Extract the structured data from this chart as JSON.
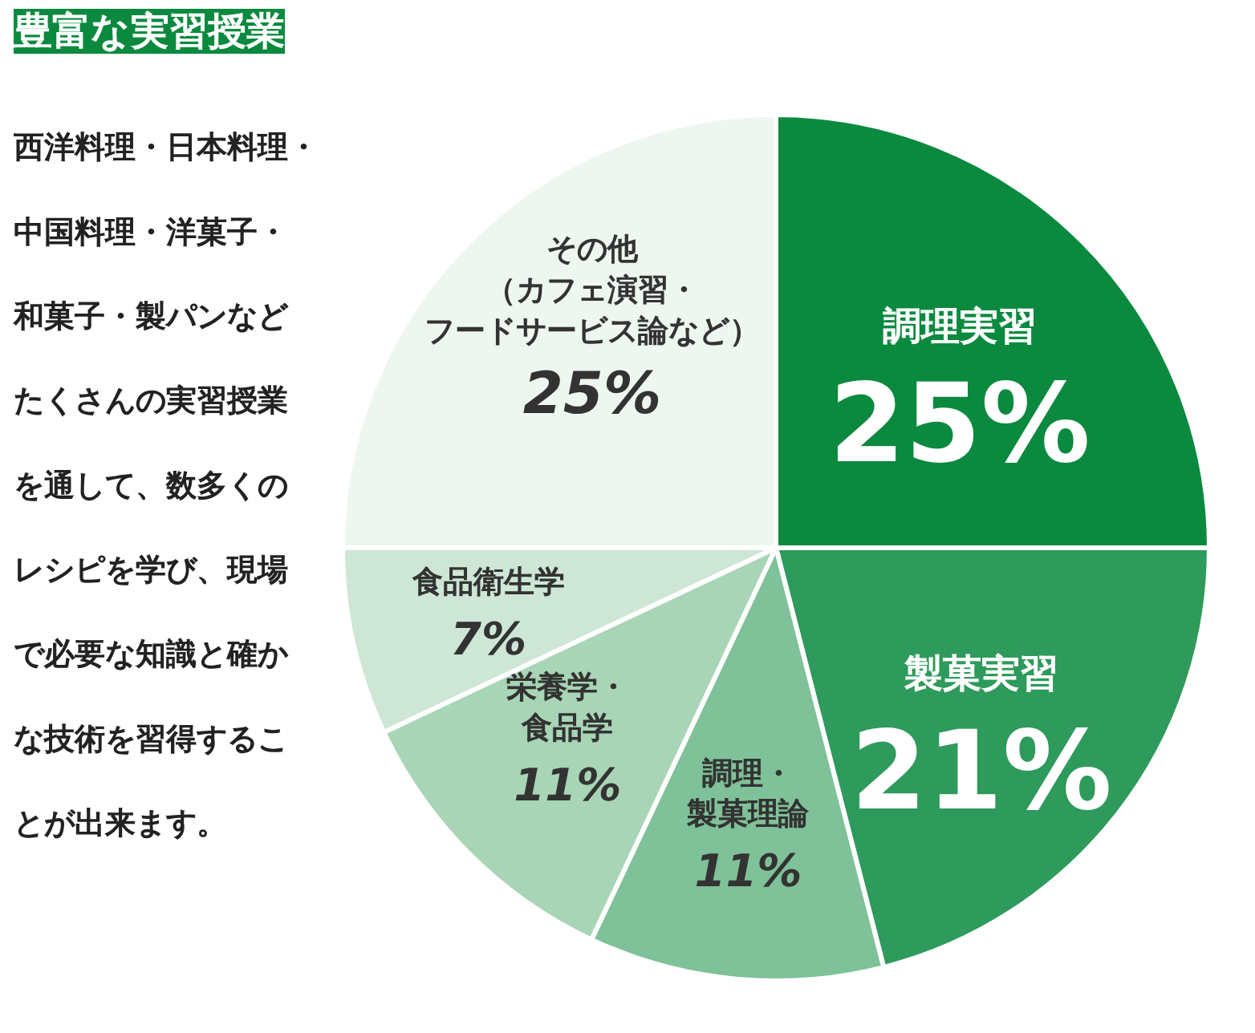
{
  "chart_data": {
    "type": "pie",
    "title": "豊富な実習授業",
    "categories": [
      "調理実習",
      "製菓実習",
      "調理・製菓理論",
      "栄養学・食品学",
      "食品衛生学",
      "その他（カフェ演習・フードサービス論など）"
    ],
    "values": [
      25,
      21,
      11,
      11,
      7,
      25
    ],
    "value_labels": [
      "25%",
      "21%",
      "11%",
      "11%",
      "7%",
      "25%"
    ],
    "colors": [
      "#0b8a3f",
      "#2e9a5b",
      "#7fc198",
      "#a8d5b6",
      "#cde6d5",
      "#eef6f0"
    ],
    "annotations": [
      "西洋料理・日本料理・",
      "中国料理・洋菓子・",
      "和菓子・製パンなど",
      "たくさんの実習授業",
      "を通して、数多くの",
      "レシピを学び、現場",
      "で必要な知識と確か",
      "な技術を習得するこ",
      "とが出来ます。"
    ]
  }
}
